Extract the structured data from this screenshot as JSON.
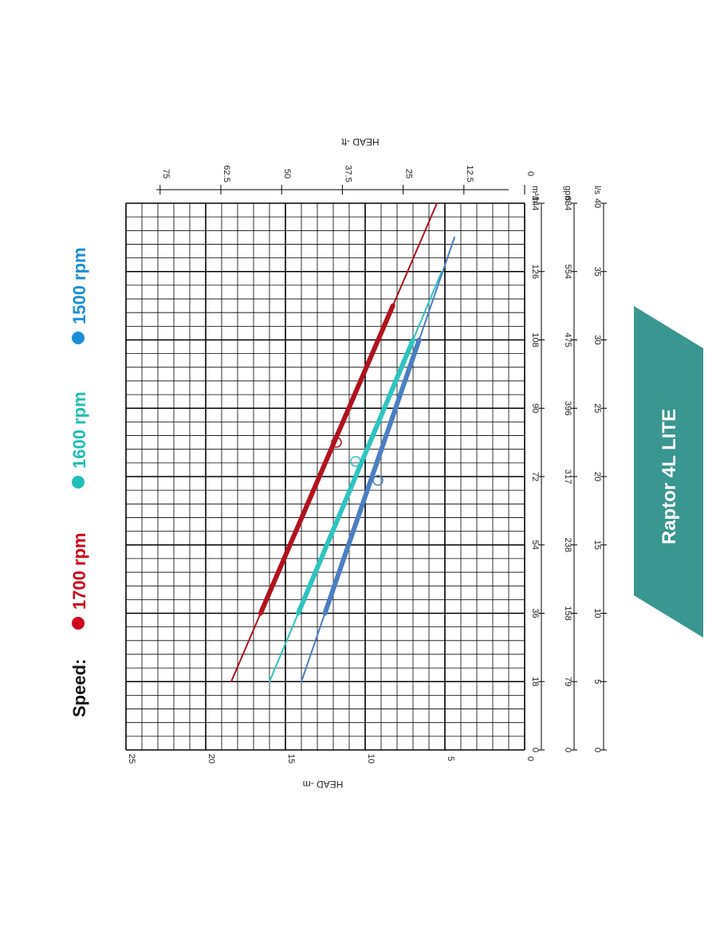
{
  "legend": {
    "label": "Speed:",
    "items": [
      {
        "label": "1700 rpm",
        "color": "#d0021b"
      },
      {
        "label": "1600 rpm",
        "color": "#1fbfb8"
      },
      {
        "label": "1500 rpm",
        "color": "#1a8fd8"
      }
    ]
  },
  "badge": {
    "label": "Raptor 4L LITE",
    "color": "#3a9690"
  },
  "chart_data": {
    "type": "line",
    "xlabel": "",
    "ylabel": "HEAD -m",
    "ylabel_secondary": "HEAD -ft",
    "xlim": [
      0,
      144
    ],
    "ylim": [
      0,
      25
    ],
    "grid": true,
    "x_axes": [
      {
        "unit": "m³/h",
        "ticks": [
          "0",
          "18",
          "36",
          "54",
          "72",
          "90",
          "108",
          "126",
          "144"
        ]
      },
      {
        "unit": "gpm",
        "ticks": [
          "0",
          "79",
          "158",
          "238",
          "317",
          "396",
          "475",
          "554",
          "634"
        ]
      },
      {
        "unit": "l/s",
        "ticks": [
          "0",
          "5",
          "10",
          "15",
          "20",
          "25",
          "30",
          "35",
          "40"
        ]
      }
    ],
    "y_ticks": [
      "0",
      "5",
      "10",
      "15",
      "20",
      "25"
    ],
    "y_ticks_secondary": [
      "0",
      "12.5",
      "25",
      "37.5",
      "50",
      "62.5",
      "75"
    ],
    "series": [
      {
        "name": "1700 rpm",
        "color": "#b0131e",
        "x": [
          18,
          144
        ],
        "y": [
          18.4,
          5.5
        ],
        "bold_range": [
          36,
          117
        ],
        "marker": {
          "x": 81,
          "y": 11.8
        }
      },
      {
        "name": "1600 rpm",
        "color": "#2ec4c0",
        "x": [
          18,
          126
        ],
        "y": [
          16.0,
          5.2
        ],
        "bold_range": [
          36,
          108
        ],
        "marker": {
          "x": 76,
          "y": 10.6
        }
      },
      {
        "name": "1500 rpm",
        "color": "#4a7fc1",
        "x": [
          18,
          135
        ],
        "y": [
          14.0,
          4.4
        ],
        "bold_range": [
          36,
          108
        ],
        "marker": {
          "x": 71,
          "y": 9.2
        }
      }
    ]
  }
}
